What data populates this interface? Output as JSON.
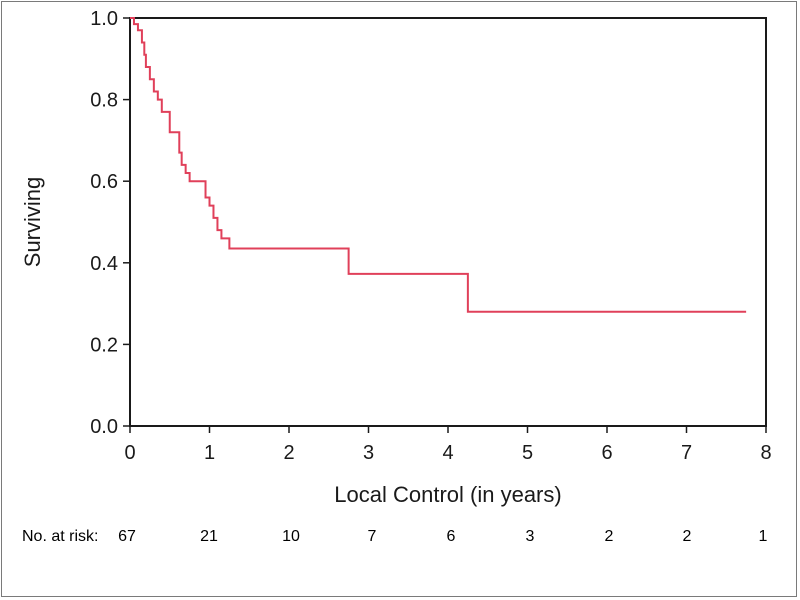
{
  "chart_data": {
    "type": "line",
    "xlabel": "Local Control (in years)",
    "ylabel": "Surviving",
    "xlim": [
      0,
      8
    ],
    "ylim": [
      0.0,
      1.0
    ],
    "x_ticks": [
      "0",
      "1",
      "2",
      "3",
      "4",
      "5",
      "6",
      "7",
      "8"
    ],
    "y_ticks": [
      "0.0",
      "0.2",
      "0.4",
      "0.6",
      "0.8",
      "1.0"
    ],
    "grid": false,
    "series": [
      {
        "color": "#e0405a",
        "step": true,
        "points": [
          [
            0.0,
            1.0
          ],
          [
            0.05,
            0.985
          ],
          [
            0.1,
            0.97
          ],
          [
            0.15,
            0.94
          ],
          [
            0.18,
            0.91
          ],
          [
            0.2,
            0.88
          ],
          [
            0.25,
            0.85
          ],
          [
            0.3,
            0.82
          ],
          [
            0.35,
            0.8
          ],
          [
            0.4,
            0.77
          ],
          [
            0.5,
            0.72
          ],
          [
            0.62,
            0.67
          ],
          [
            0.65,
            0.64
          ],
          [
            0.7,
            0.62
          ],
          [
            0.75,
            0.6
          ],
          [
            0.95,
            0.56
          ],
          [
            1.0,
            0.54
          ],
          [
            1.05,
            0.51
          ],
          [
            1.1,
            0.48
          ],
          [
            1.15,
            0.46
          ],
          [
            1.25,
            0.435
          ],
          [
            2.75,
            0.373
          ],
          [
            4.25,
            0.28
          ],
          [
            7.75,
            0.28
          ]
        ]
      }
    ],
    "risk_table": {
      "label": "No. at risk:",
      "values": [
        "67",
        "21",
        "10",
        "7",
        "6",
        "3",
        "2",
        "2",
        "1"
      ]
    }
  }
}
